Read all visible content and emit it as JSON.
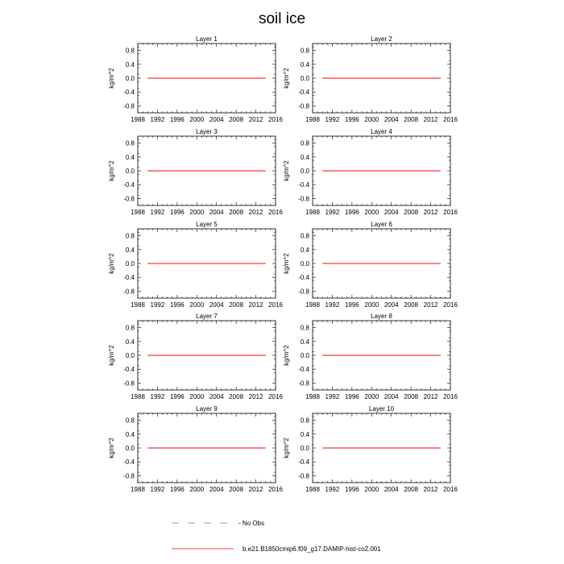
{
  "figure": {
    "title": "soil ice"
  },
  "chart_data": [
    {
      "type": "line",
      "title": "Layer 1",
      "ylabel": "kg/m^2",
      "xlim": [
        1988,
        2016
      ],
      "ylim": [
        -1.0,
        1.0
      ],
      "xticks": [
        1988,
        1992,
        1996,
        2000,
        2004,
        2008,
        2012,
        2016
      ],
      "yticks": [
        -0.8,
        -0.4,
        0.0,
        0.4,
        0.8
      ],
      "xtick_labels": [
        "1988",
        "1992",
        "1996",
        "2000",
        "2004",
        "2008",
        "2012",
        "2016"
      ],
      "ytick_labels": [
        "-0.8",
        "-0.4",
        "0.0",
        "0.4",
        "0.8"
      ],
      "series": [
        {
          "name": "b.e21.B1850cmip6.f09_g17.DAMIP-hist-co2.001",
          "color": "#ff0000",
          "x": [
            1990,
            2014
          ],
          "y": [
            0.0,
            0.0
          ]
        }
      ]
    },
    {
      "type": "line",
      "title": "Layer 2",
      "ylabel": "kg/m^2",
      "xlim": [
        1988,
        2016
      ],
      "ylim": [
        -1.0,
        1.0
      ],
      "xticks": [
        1988,
        1992,
        1996,
        2000,
        2004,
        2008,
        2012,
        2016
      ],
      "yticks": [
        -0.8,
        -0.4,
        0.0,
        0.4,
        0.8
      ],
      "xtick_labels": [
        "1988",
        "1992",
        "1996",
        "2000",
        "2004",
        "2008",
        "2012",
        "2016"
      ],
      "ytick_labels": [
        "-0.8",
        "-0.4",
        "0.0",
        "0.4",
        "0.8"
      ],
      "series": [
        {
          "name": "b.e21.B1850cmip6.f09_g17.DAMIP-hist-co2.001",
          "color": "#ff0000",
          "x": [
            1990,
            2014
          ],
          "y": [
            0.0,
            0.0
          ]
        }
      ]
    },
    {
      "type": "line",
      "title": "Layer 3",
      "ylabel": "kg/m^2",
      "xlim": [
        1988,
        2016
      ],
      "ylim": [
        -1.0,
        1.0
      ],
      "xticks": [
        1988,
        1992,
        1996,
        2000,
        2004,
        2008,
        2012,
        2016
      ],
      "yticks": [
        -0.8,
        -0.4,
        0.0,
        0.4,
        0.8
      ],
      "xtick_labels": [
        "1988",
        "1992",
        "1996",
        "2000",
        "2004",
        "2008",
        "2012",
        "2016"
      ],
      "ytick_labels": [
        "-0.8",
        "-0.4",
        "0.0",
        "0.4",
        "0.8"
      ],
      "series": [
        {
          "name": "b.e21.B1850cmip6.f09_g17.DAMIP-hist-co2.001",
          "color": "#ff0000",
          "x": [
            1990,
            2014
          ],
          "y": [
            0.0,
            0.0
          ]
        }
      ]
    },
    {
      "type": "line",
      "title": "Layer 4",
      "ylabel": "kg/m^2",
      "xlim": [
        1988,
        2016
      ],
      "ylim": [
        -1.0,
        1.0
      ],
      "xticks": [
        1988,
        1992,
        1996,
        2000,
        2004,
        2008,
        2012,
        2016
      ],
      "yticks": [
        -0.8,
        -0.4,
        0.0,
        0.4,
        0.8
      ],
      "xtick_labels": [
        "1988",
        "1992",
        "1996",
        "2000",
        "2004",
        "2008",
        "2012",
        "2016"
      ],
      "ytick_labels": [
        "-0.8",
        "-0.4",
        "0.0",
        "0.4",
        "0.8"
      ],
      "series": [
        {
          "name": "b.e21.B1850cmip6.f09_g17.DAMIP-hist-co2.001",
          "color": "#ff0000",
          "x": [
            1990,
            2014
          ],
          "y": [
            0.0,
            0.0
          ]
        }
      ]
    },
    {
      "type": "line",
      "title": "Layer 5",
      "ylabel": "kg/m^2",
      "xlim": [
        1988,
        2016
      ],
      "ylim": [
        -1.0,
        1.0
      ],
      "xticks": [
        1988,
        1992,
        1996,
        2000,
        2004,
        2008,
        2012,
        2016
      ],
      "yticks": [
        -0.8,
        -0.4,
        0.0,
        0.4,
        0.8
      ],
      "xtick_labels": [
        "1988",
        "1992",
        "1996",
        "2000",
        "2004",
        "2008",
        "2012",
        "2016"
      ],
      "ytick_labels": [
        "-0.8",
        "-0.4",
        "0.0",
        "0.4",
        "0.8"
      ],
      "series": [
        {
          "name": "b.e21.B1850cmip6.f09_g17.DAMIP-hist-co2.001",
          "color": "#ff0000",
          "x": [
            1990,
            2014
          ],
          "y": [
            0.0,
            0.0
          ]
        }
      ]
    },
    {
      "type": "line",
      "title": "Layer 6",
      "ylabel": "kg/m^2",
      "xlim": [
        1988,
        2016
      ],
      "ylim": [
        -1.0,
        1.0
      ],
      "xticks": [
        1988,
        1992,
        1996,
        2000,
        2004,
        2008,
        2012,
        2016
      ],
      "yticks": [
        -0.8,
        -0.4,
        0.0,
        0.4,
        0.8
      ],
      "xtick_labels": [
        "1988",
        "1992",
        "1996",
        "2000",
        "2004",
        "2008",
        "2012",
        "2016"
      ],
      "ytick_labels": [
        "-0.8",
        "-0.4",
        "0.0",
        "0.4",
        "0.8"
      ],
      "series": [
        {
          "name": "b.e21.B1850cmip6.f09_g17.DAMIP-hist-co2.001",
          "color": "#ff0000",
          "x": [
            1990,
            2014
          ],
          "y": [
            0.0,
            0.0
          ]
        }
      ]
    },
    {
      "type": "line",
      "title": "Layer 7",
      "ylabel": "kg/m^2",
      "xlim": [
        1988,
        2016
      ],
      "ylim": [
        -1.0,
        1.0
      ],
      "xticks": [
        1988,
        1992,
        1996,
        2000,
        2004,
        2008,
        2012,
        2016
      ],
      "yticks": [
        -0.8,
        -0.4,
        0.0,
        0.4,
        0.8
      ],
      "xtick_labels": [
        "1988",
        "1992",
        "1996",
        "2000",
        "2004",
        "2008",
        "2012",
        "2016"
      ],
      "ytick_labels": [
        "-0.8",
        "-0.4",
        "0.0",
        "0.4",
        "0.8"
      ],
      "series": [
        {
          "name": "b.e21.B1850cmip6.f09_g17.DAMIP-hist-co2.001",
          "color": "#ff0000",
          "x": [
            1990,
            2014
          ],
          "y": [
            0.0,
            0.0
          ]
        }
      ]
    },
    {
      "type": "line",
      "title": "Layer 8",
      "ylabel": "kg/m^2",
      "xlim": [
        1988,
        2016
      ],
      "ylim": [
        -1.0,
        1.0
      ],
      "xticks": [
        1988,
        1992,
        1996,
        2000,
        2004,
        2008,
        2012,
        2016
      ],
      "yticks": [
        -0.8,
        -0.4,
        0.0,
        0.4,
        0.8
      ],
      "xtick_labels": [
        "1988",
        "1992",
        "1996",
        "2000",
        "2004",
        "2008",
        "2012",
        "2016"
      ],
      "ytick_labels": [
        "-0.8",
        "-0.4",
        "0.0",
        "0.4",
        "0.8"
      ],
      "series": [
        {
          "name": "b.e21.B1850cmip6.f09_g17.DAMIP-hist-co2.001",
          "color": "#ff0000",
          "x": [
            1990,
            2014
          ],
          "y": [
            0.0,
            0.0
          ]
        }
      ]
    },
    {
      "type": "line",
      "title": "Layer 9",
      "ylabel": "kg/m^2",
      "xlim": [
        1988,
        2016
      ],
      "ylim": [
        -1.0,
        1.0
      ],
      "xticks": [
        1988,
        1992,
        1996,
        2000,
        2004,
        2008,
        2012,
        2016
      ],
      "yticks": [
        -0.8,
        -0.4,
        0.0,
        0.4,
        0.8
      ],
      "xtick_labels": [
        "1988",
        "1992",
        "1996",
        "2000",
        "2004",
        "2008",
        "2012",
        "2016"
      ],
      "ytick_labels": [
        "-0.8",
        "-0.4",
        "0.0",
        "0.4",
        "0.8"
      ],
      "series": [
        {
          "name": "b.e21.B1850cmip6.f09_g17.DAMIP-hist-co2.001",
          "color": "#ff0000",
          "x": [
            1990,
            2014
          ],
          "y": [
            0.0,
            0.0
          ]
        }
      ]
    },
    {
      "type": "line",
      "title": "Layer 10",
      "ylabel": "kg/m^2",
      "xlim": [
        1988,
        2016
      ],
      "ylim": [
        -1.0,
        1.0
      ],
      "xticks": [
        1988,
        1992,
        1996,
        2000,
        2004,
        2008,
        2012,
        2016
      ],
      "yticks": [
        -0.8,
        -0.4,
        0.0,
        0.4,
        0.8
      ],
      "xtick_labels": [
        "1988",
        "1992",
        "1996",
        "2000",
        "2004",
        "2008",
        "2012",
        "2016"
      ],
      "ytick_labels": [
        "-0.8",
        "-0.4",
        "0.0",
        "0.4",
        "0.8"
      ],
      "series": [
        {
          "name": "b.e21.B1850cmip6.f09_g17.DAMIP-hist-co2.001",
          "color": "#ff0000",
          "x": [
            1990,
            2014
          ],
          "y": [
            0.0,
            0.0
          ]
        }
      ]
    }
  ],
  "legend": {
    "placement": "bottom",
    "entries": [
      {
        "label": "- No Obs",
        "style": "dashed",
        "color": "#8080a8"
      },
      {
        "label": "b.e21.B1850cmip6.f09_g17.DAMIP-hist-co2.001",
        "style": "solid",
        "color": "#ff0000"
      }
    ]
  }
}
